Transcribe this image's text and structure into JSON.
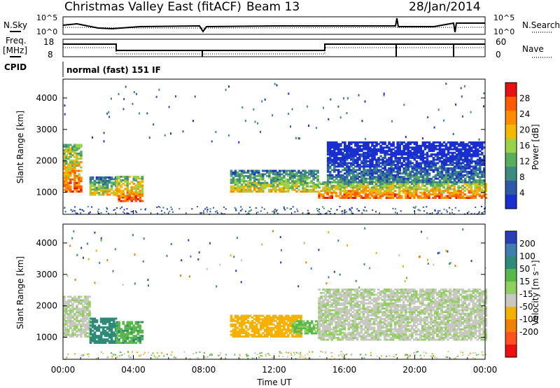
{
  "header": {
    "station": "Christmas Valley East (fitACF)",
    "beam": "Beam 13",
    "date": "28/Jan/2014"
  },
  "noise_panel": {
    "left_label": "N.Sky",
    "right_label": "N.Search",
    "left_ticks": [
      "10^5",
      "10^0"
    ],
    "right_ticks": [
      "10^5",
      "10^0"
    ]
  },
  "freq_panel": {
    "left_label_1": "Freq.",
    "left_label_2": "[MHz]",
    "right_label": "Nave",
    "left_ticks": [
      "18",
      "8"
    ],
    "right_ticks": [
      "60",
      "0"
    ]
  },
  "cpid": {
    "label": "CPID",
    "mode": "normal (fast) 151 IF"
  },
  "colors": {
    "power_scale": [
      "#1a2fcf",
      "#2c5aa8",
      "#3d8a80",
      "#5aad5a",
      "#9ad24a",
      "#f5b800",
      "#ff8c00",
      "#ff5a00",
      "#e81010"
    ],
    "velocity_scale": [
      "#2b3fb5",
      "#3f7fb0",
      "#2f8a78",
      "#5ab84a",
      "#90d060",
      "#c8c8c0",
      "#f5b000",
      "#f08000",
      "#ff5020",
      "#ee1010"
    ]
  },
  "chart_data": [
    {
      "type": "heatmap",
      "name": "power",
      "ylabel": "Slant Range [km]",
      "yticks": [
        "1000",
        "2000",
        "3000",
        "4000"
      ],
      "ylim": [
        300,
        4600
      ],
      "colorbar_label": "Power [dB]",
      "colorbar_ticks": [
        "4",
        "8",
        "12",
        "16",
        "20",
        "24",
        "28"
      ],
      "features": [
        {
          "t_start": 0.0,
          "t_end": 1.0,
          "r_low": 1000,
          "r_high": 2500,
          "level": "strong"
        },
        {
          "t_start": 1.5,
          "t_end": 3.0,
          "r_low": 900,
          "r_high": 1500,
          "level": "medium"
        },
        {
          "t_start": 3.0,
          "t_end": 4.5,
          "r_low": 700,
          "r_high": 1500,
          "level": "strong"
        },
        {
          "t_start": 9.5,
          "t_end": 14.5,
          "r_low": 1000,
          "r_high": 1700,
          "level": "medium"
        },
        {
          "t_start": 14.5,
          "t_end": 24.0,
          "r_low": 800,
          "r_high": 1300,
          "level": "strong"
        },
        {
          "t_start": 15.0,
          "t_end": 24.0,
          "r_low": 1300,
          "r_high": 2600,
          "level": "weak"
        }
      ]
    },
    {
      "type": "heatmap",
      "name": "velocity",
      "ylabel": "Slant Range [km]",
      "yticks": [
        "1000",
        "2000",
        "3000",
        "4000"
      ],
      "ylim": [
        300,
        4600
      ],
      "xlabel": "Time UT",
      "xticks": [
        "00:00",
        "04:00",
        "08:00",
        "12:00",
        "16:00",
        "20:00",
        "00:00"
      ],
      "colorbar_label": "Velocity [m s⁻¹]",
      "colorbar_ticks": [
        "200",
        "100",
        "50",
        "15",
        "-15",
        "-50",
        "-100",
        "-200"
      ],
      "features": [
        {
          "t_start": 0.0,
          "t_end": 1.5,
          "r_low": 1000,
          "r_high": 2300,
          "velocity": 0
        },
        {
          "t_start": 1.5,
          "t_end": 3.0,
          "r_low": 800,
          "r_high": 1600,
          "velocity": 60
        },
        {
          "t_start": 3.0,
          "t_end": 4.5,
          "r_low": 800,
          "r_high": 1500,
          "velocity": 30
        },
        {
          "t_start": 9.5,
          "t_end": 13.5,
          "r_low": 1000,
          "r_high": 1700,
          "velocity": -30
        },
        {
          "t_start": 13.0,
          "t_end": 14.5,
          "r_low": 1100,
          "r_high": 1500,
          "velocity": 20
        },
        {
          "t_start": 14.5,
          "t_end": 24.0,
          "r_low": 900,
          "r_high": 2500,
          "velocity": 0
        }
      ]
    }
  ]
}
